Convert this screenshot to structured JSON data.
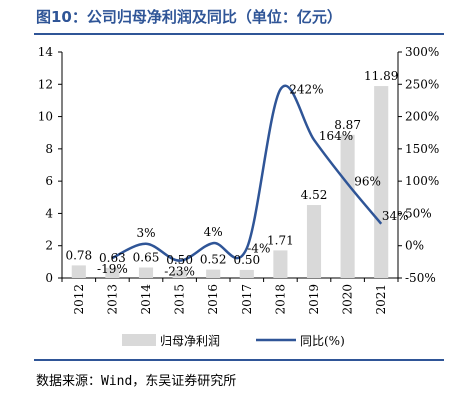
{
  "header": {
    "title": "图10：公司归母净利润及同比（单位：亿元）"
  },
  "footer": {
    "source": "数据来源：Wind，东吴证券研究所"
  },
  "colors": {
    "bar": "#d9d9d9",
    "line": "#2f5597",
    "title": "#2f5597"
  },
  "chart_data": {
    "type": "bar+line",
    "categories": [
      "2012",
      "2013",
      "2014",
      "2015",
      "2016",
      "2017",
      "2018",
      "2019",
      "2020",
      "2021"
    ],
    "series": [
      {
        "name": "归母净利润",
        "type": "bar",
        "axis": "left",
        "values": [
          0.78,
          0.63,
          0.65,
          0.5,
          0.52,
          0.5,
          1.71,
          4.52,
          8.87,
          11.89
        ],
        "labels": [
          "0.78",
          "0.63",
          "0.65",
          "0.50",
          "0.52",
          "0.50",
          "1.71",
          "4.52",
          "8.87",
          "11.89"
        ]
      },
      {
        "name": "同比(%)",
        "type": "line",
        "axis": "right",
        "values": [
          null,
          -19,
          3,
          -23,
          4,
          -4,
          242,
          164,
          96,
          34
        ],
        "labels": [
          "",
          "-19%",
          "3%",
          "-23%",
          "4%",
          "-4%",
          "242%",
          "164%",
          "96%",
          "34%"
        ]
      }
    ],
    "y_left": {
      "min": 0,
      "max": 14,
      "ticks": [
        "0",
        "2",
        "4",
        "6",
        "8",
        "10",
        "12",
        "14"
      ]
    },
    "y_right": {
      "min": -50,
      "max": 300,
      "ticks": [
        "-50%",
        "0%",
        "50%",
        "100%",
        "150%",
        "200%",
        "250%",
        "300%"
      ]
    },
    "legend_position": "bottom",
    "grid": false
  }
}
